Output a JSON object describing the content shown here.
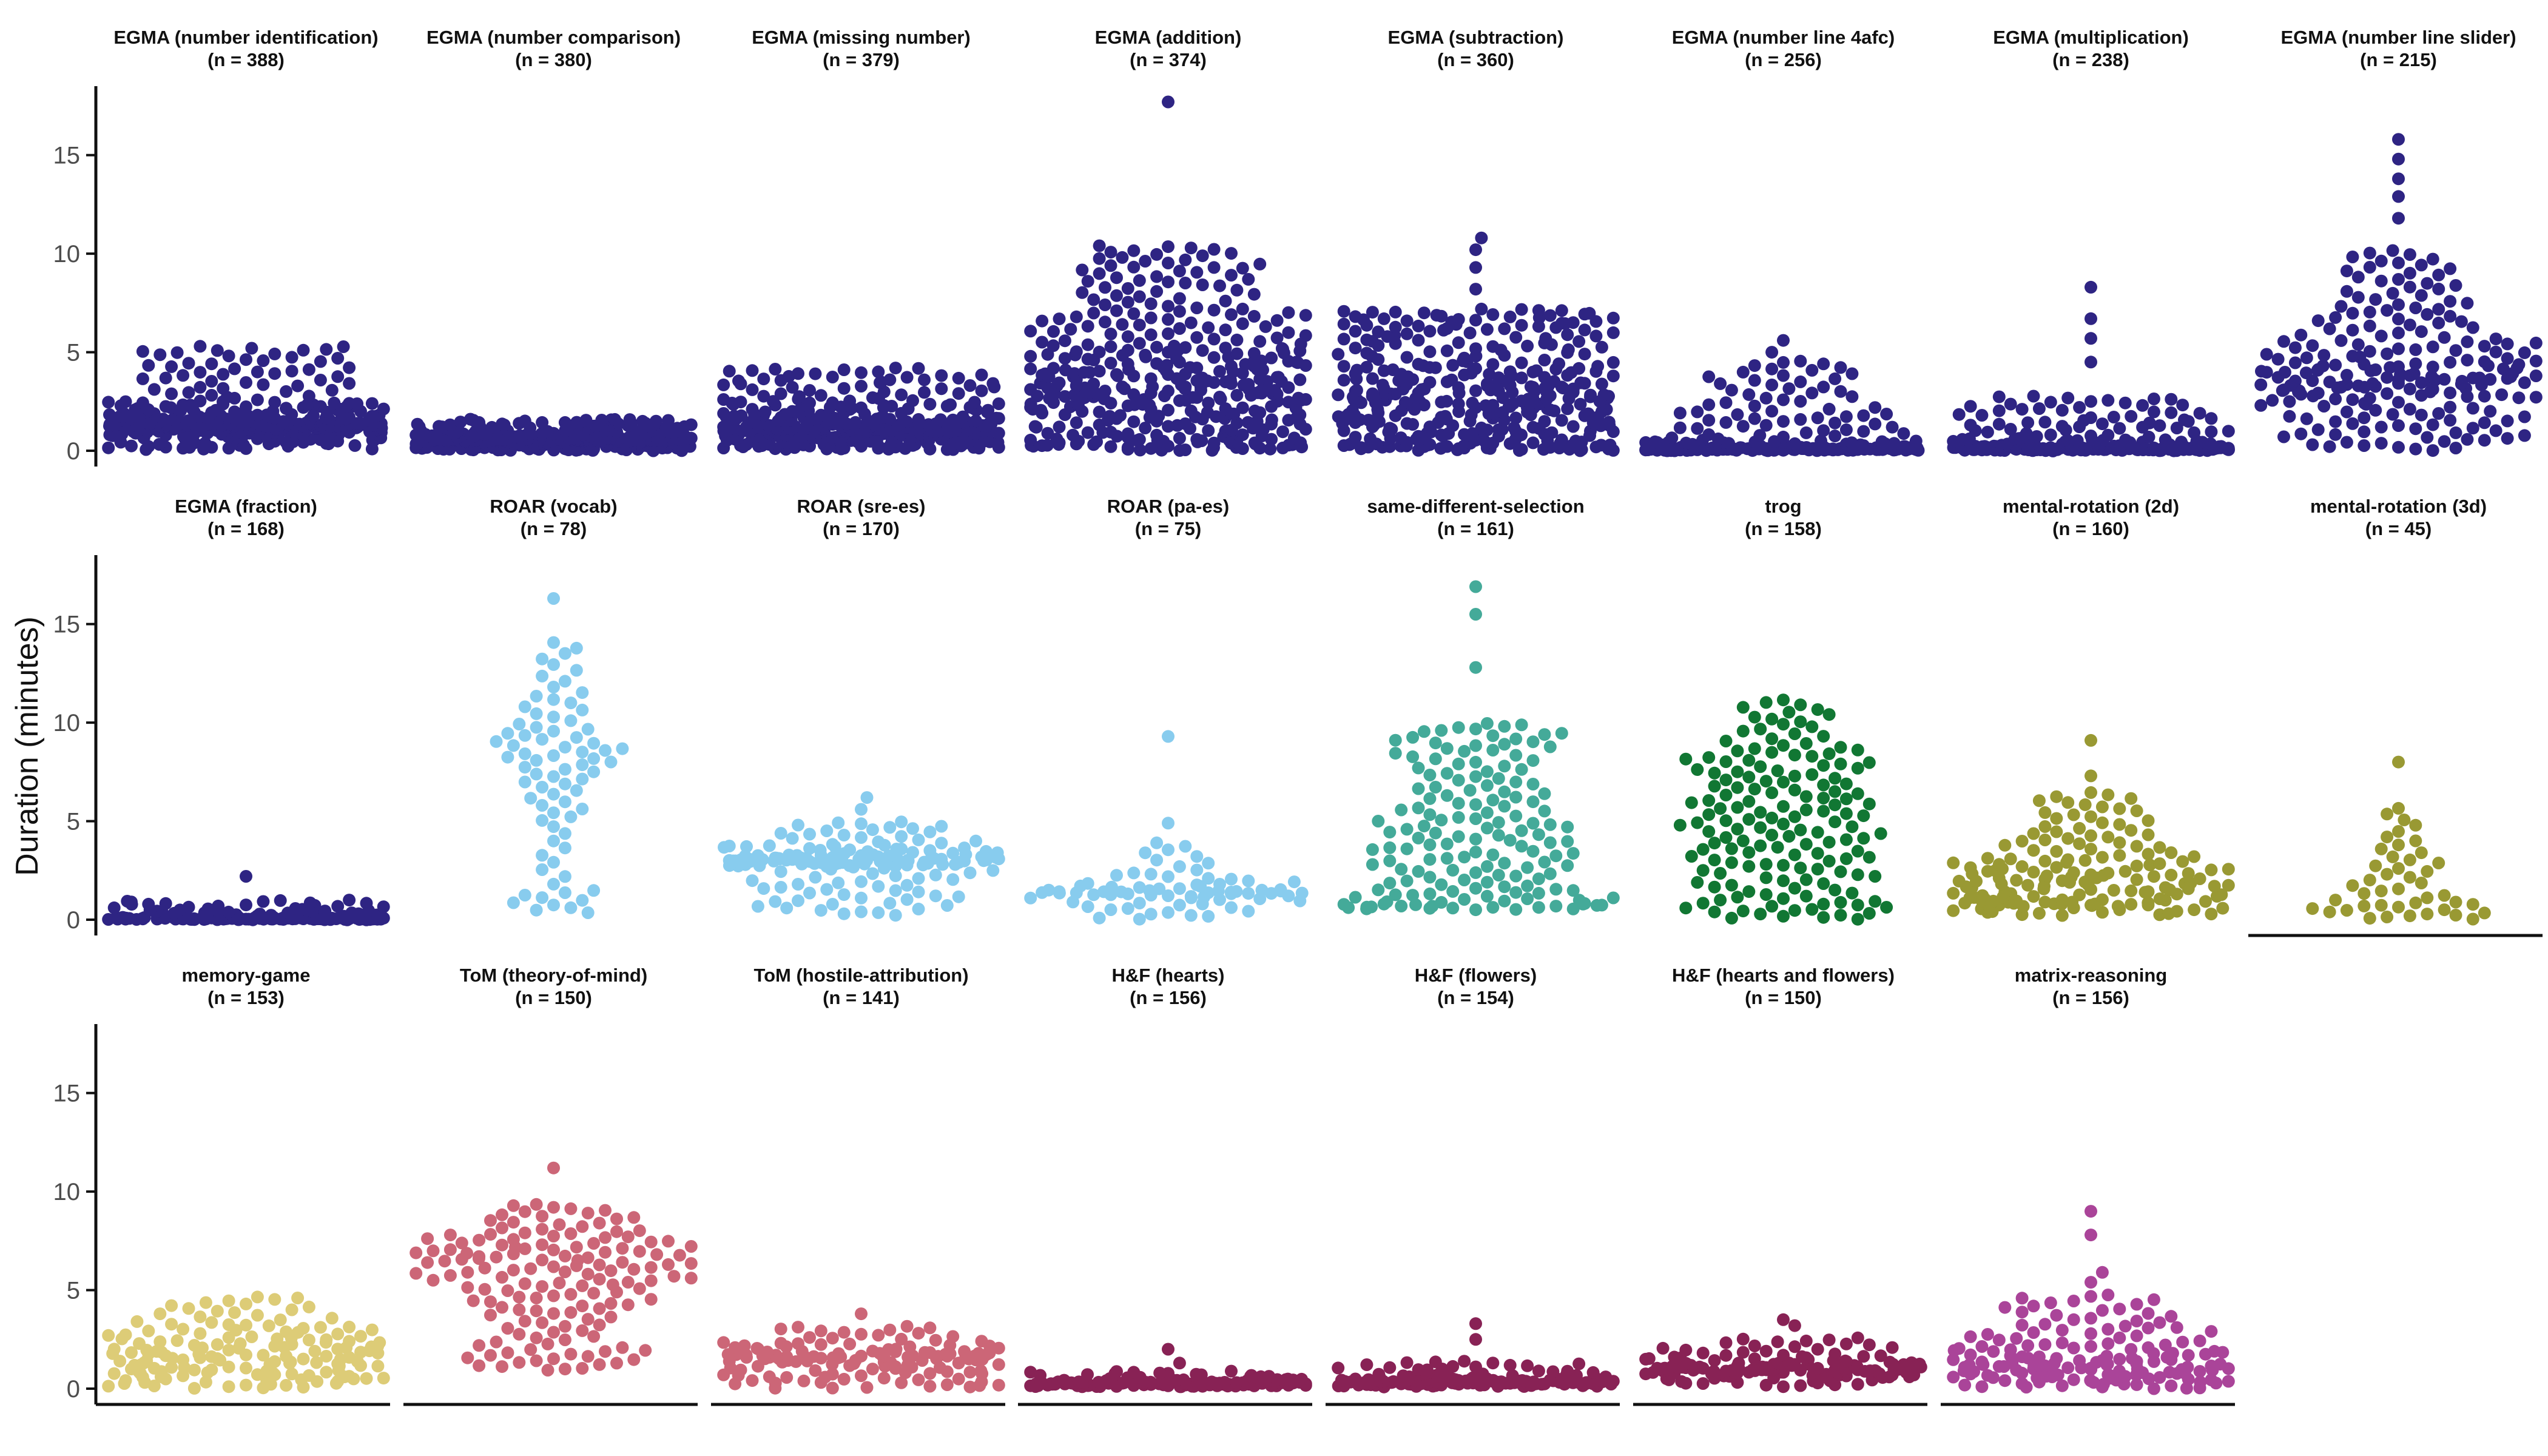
{
  "chart_data": {
    "type": "scatter",
    "subtype": "beeswarm",
    "ylabel": "Duration (minutes)",
    "ylim": [
      -0.8,
      18.5
    ],
    "yticks": [
      0,
      5,
      10,
      15
    ],
    "grid": false,
    "legend": "none",
    "layout": {
      "rows": 3,
      "cols": 8
    },
    "panels": [
      {
        "title": "EGMA (number identification)",
        "n_label": "(n = 388)",
        "n": 388,
        "color": "#2e2483",
        "quantiles": [
          0.05,
          0.8,
          1.05,
          1.2,
          1.3,
          1.4,
          1.8,
          2.5,
          5.3
        ],
        "core_width": 0.16,
        "spread": 1.0,
        "outliers": [
          4.0,
          5.1,
          5.3
        ]
      },
      {
        "title": "EGMA (number comparison)",
        "n_label": "(n = 380)",
        "n": 380,
        "color": "#2e2483",
        "quantiles": [
          0.0,
          0.2,
          0.4,
          0.5,
          0.55,
          0.6,
          0.8,
          1.1,
          1.6
        ],
        "core_width": 0.14,
        "spread": 1.0,
        "outliers": [
          1.4,
          1.6
        ]
      },
      {
        "title": "EGMA (missing number)",
        "n_label": "(n = 379)",
        "n": 379,
        "color": "#2e2483",
        "quantiles": [
          0.05,
          0.4,
          0.7,
          1.0,
          1.1,
          1.3,
          1.7,
          2.5,
          4.2
        ],
        "core_width": 0.4,
        "spread": 1.0,
        "outliers": [
          3.6,
          4.2
        ]
      },
      {
        "title": "EGMA (addition)",
        "n_label": "(n = 374)",
        "n": 374,
        "color": "#2e2483",
        "quantiles": [
          0.0,
          0.6,
          1.6,
          2.6,
          3.3,
          4.2,
          5.3,
          7.2,
          10.4
        ],
        "core_width": 0.9,
        "spread": 1.0,
        "outliers": [
          8.6,
          9.3,
          10.4,
          17.7
        ]
      },
      {
        "title": "EGMA (subtraction)",
        "n_label": "(n = 360)",
        "n": 360,
        "color": "#2e2483",
        "quantiles": [
          0.0,
          0.4,
          1.2,
          2.0,
          2.7,
          3.4,
          4.4,
          6.0,
          7.2
        ],
        "core_width": 0.35,
        "spread": 1.0,
        "outliers": [
          8.2,
          9.3,
          10.2,
          10.8
        ]
      },
      {
        "title": "EGMA (number line 4afc)",
        "n_label": "(n = 256)",
        "n": 256,
        "color": "#2e2483",
        "quantiles": [
          0.0,
          0.05,
          0.08,
          0.1,
          0.12,
          0.2,
          0.5,
          2.0,
          4.6
        ],
        "core_width": 0.07,
        "spread": 1.0,
        "outliers": [
          5.0,
          5.6
        ]
      },
      {
        "title": "EGMA (multiplication)",
        "n_label": "(n = 238)",
        "n": 238,
        "color": "#2e2483",
        "quantiles": [
          0.0,
          0.05,
          0.08,
          0.1,
          0.15,
          0.25,
          0.6,
          1.5,
          2.8
        ],
        "core_width": 0.12,
        "spread": 1.0,
        "outliers": [
          4.5,
          5.7,
          6.7,
          8.3
        ]
      },
      {
        "title": "EGMA (number line slider)",
        "n_label": "(n = 215)",
        "n": 215,
        "color": "#2e2483",
        "quantiles": [
          0.0,
          1.3,
          2.6,
          3.3,
          3.8,
          4.5,
          5.6,
          7.5,
          10.2
        ],
        "core_width": 0.9,
        "spread": 1.0,
        "outliers": [
          11.8,
          12.9,
          13.8,
          14.8,
          15.8
        ]
      },
      {
        "title": "EGMA (fraction)",
        "n_label": "(n = 168)",
        "n": 168,
        "color": "#2e2483",
        "quantiles": [
          0.0,
          0.02,
          0.04,
          0.05,
          0.07,
          0.1,
          0.2,
          0.5,
          1.0
        ],
        "core_width": 0.08,
        "spread": 1.0,
        "outliers": [
          2.2
        ]
      },
      {
        "title": "ROAR (vocab)",
        "n_label": "(n = 78)",
        "n": 78,
        "color": "#88ccee",
        "quantiles": [
          0.3,
          1.5,
          5.0,
          6.8,
          8.0,
          8.8,
          9.8,
          11.5,
          14.2
        ],
        "core_width": 1.0,
        "spread": 1.0,
        "outliers": [
          16.3
        ]
      },
      {
        "title": "ROAR (sre-es)",
        "n_label": "(n = 170)",
        "n": 170,
        "color": "#88ccee",
        "quantiles": [
          0.2,
          1.5,
          2.7,
          2.9,
          3.0,
          3.1,
          3.3,
          3.8,
          5.0
        ],
        "core_width": 0.3,
        "spread": 1.0,
        "outliers": [
          5.6,
          6.2
        ]
      },
      {
        "title": "ROAR (pa-es)",
        "n_label": "(n = 75)",
        "n": 75,
        "color": "#88ccee",
        "quantiles": [
          0.0,
          0.6,
          1.1,
          1.3,
          1.4,
          1.5,
          1.8,
          2.4,
          4.0
        ],
        "core_width": 0.8,
        "spread": 1.0,
        "outliers": [
          4.9,
          9.3
        ]
      },
      {
        "title": "same-different-selection",
        "n_label": "(n = 161)",
        "n": 161,
        "color": "#44aa99",
        "quantiles": [
          0.5,
          0.8,
          1.6,
          2.8,
          4.0,
          5.2,
          6.8,
          8.6,
          10.0
        ],
        "core_width": 0.8,
        "spread": 1.0,
        "outliers": [
          12.8,
          15.5,
          16.9
        ]
      },
      {
        "title": "trog",
        "n_label": "(n = 158)",
        "n": 158,
        "color": "#117733",
        "quantiles": [
          0.0,
          1.0,
          2.5,
          3.8,
          5.0,
          6.2,
          7.5,
          8.8,
          11.2
        ],
        "core_width": 1.0,
        "spread": 1.0,
        "outliers": []
      },
      {
        "title": "mental-rotation (2d)",
        "n_label": "(n = 160)",
        "n": 160,
        "color": "#999933",
        "quantiles": [
          0.2,
          0.7,
          1.0,
          1.5,
          2.0,
          2.5,
          3.2,
          4.5,
          6.5
        ],
        "core_width": 0.9,
        "spread": 1.0,
        "outliers": [
          7.3,
          9.1
        ]
      },
      {
        "title": "mental-rotation (3d)",
        "n_label": "(n = 45)",
        "n": 45,
        "color": "#999933",
        "quantiles": [
          0.0,
          0.3,
          0.6,
          0.9,
          1.5,
          2.3,
          3.1,
          4.2,
          5.8
        ],
        "core_width": 0.9,
        "spread": 1.0,
        "outliers": [
          8.0
        ]
      },
      {
        "title": "memory-game",
        "n_label": "(n = 153)",
        "n": 153,
        "color": "#ddcc77",
        "quantiles": [
          0.0,
          0.5,
          0.9,
          1.3,
          1.7,
          2.1,
          2.6,
          3.3,
          4.7
        ],
        "core_width": 1.0,
        "spread": 1.0,
        "outliers": []
      },
      {
        "title": "ToM (theory-of-mind)",
        "n_label": "(n = 150)",
        "n": 150,
        "color": "#cc6677",
        "quantiles": [
          0.9,
          2.0,
          3.8,
          5.0,
          5.9,
          6.6,
          7.2,
          8.0,
          9.4
        ],
        "core_width": 1.0,
        "spread": 1.0,
        "outliers": [
          11.2
        ]
      },
      {
        "title": "ToM (hostile-attribution)",
        "n_label": "(n = 141)",
        "n": 141,
        "color": "#cc6677",
        "quantiles": [
          0.0,
          0.5,
          1.0,
          1.4,
          1.6,
          1.7,
          1.9,
          2.3,
          3.2
        ],
        "core_width": 0.8,
        "spread": 1.0,
        "outliers": [
          3.8
        ]
      },
      {
        "title": "H&F (hearts)",
        "n_label": "(n = 156)",
        "n": 156,
        "color": "#882255",
        "quantiles": [
          0.1,
          0.15,
          0.2,
          0.25,
          0.28,
          0.3,
          0.35,
          0.5,
          0.9
        ],
        "core_width": 0.08,
        "spread": 1.0,
        "outliers": [
          1.3,
          2.0
        ]
      },
      {
        "title": "H&F (flowers)",
        "n_label": "(n = 154)",
        "n": 154,
        "color": "#882255",
        "quantiles": [
          0.1,
          0.2,
          0.25,
          0.3,
          0.35,
          0.4,
          0.5,
          0.8,
          1.4
        ],
        "core_width": 0.1,
        "spread": 1.0,
        "outliers": [
          2.5,
          3.3
        ]
      },
      {
        "title": "H&F (hearts and flowers)",
        "n_label": "(n = 150)",
        "n": 150,
        "color": "#882255",
        "quantiles": [
          0.1,
          0.6,
          0.8,
          0.9,
          1.0,
          1.1,
          1.3,
          1.7,
          2.6
        ],
        "core_width": 0.25,
        "spread": 1.0,
        "outliers": [
          3.2,
          3.5
        ]
      },
      {
        "title": "matrix-reasoning",
        "n_label": "(n = 156)",
        "n": 156,
        "color": "#aa4499",
        "quantiles": [
          0.0,
          0.4,
          0.7,
          1.0,
          1.3,
          1.7,
          2.3,
          3.3,
          4.8
        ],
        "core_width": 0.9,
        "spread": 1.0,
        "outliers": [
          5.4,
          5.9,
          7.8,
          9.0
        ]
      }
    ]
  }
}
